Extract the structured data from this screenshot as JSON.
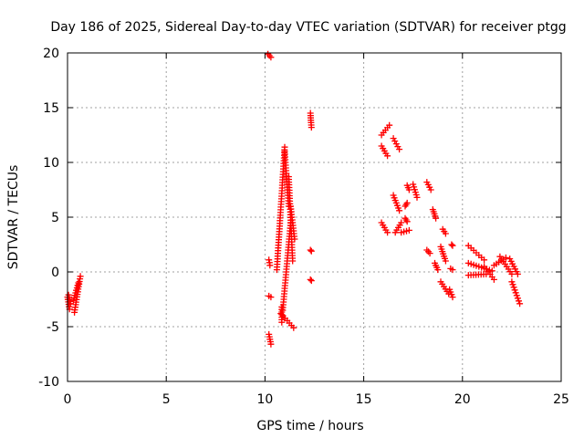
{
  "chart_data": {
    "type": "scatter",
    "title": "Day 186 of 2025, Sidereal Day-to-day VTEC variation (SDTVAR) for receiver ptgg",
    "xlabel": "GPS time / hours",
    "ylabel": "SDTVAR / TECUs",
    "xlim": [
      0,
      25
    ],
    "ylim": [
      -10,
      20
    ],
    "xticks": [
      0,
      5,
      10,
      15,
      20,
      25
    ],
    "yticks": [
      -10,
      -5,
      0,
      5,
      10,
      15,
      20
    ],
    "grid": true,
    "marker": "+",
    "color": "#ff0000",
    "segments": [
      {
        "x0": 0.0,
        "y0": -2.3,
        "x1": 0.1,
        "y1": -3.4
      },
      {
        "x0": 0.05,
        "y0": -2.1,
        "x1": 0.15,
        "y1": -2.9
      },
      {
        "x0": 0.35,
        "y0": -3.7,
        "x1": 0.65,
        "y1": -0.4
      },
      {
        "x0": 0.3,
        "y0": -2.6,
        "x1": 0.55,
        "y1": -1.0
      },
      {
        "x0": 10.15,
        "y0": 19.9,
        "x1": 10.3,
        "y1": 19.6
      },
      {
        "x0": 10.2,
        "y0": -5.7,
        "x1": 10.3,
        "y1": -6.6
      },
      {
        "x0": 10.2,
        "y0": 1.1,
        "x1": 10.25,
        "y1": 0.6
      },
      {
        "x0": 10.2,
        "y0": -2.2,
        "x1": 10.3,
        "y1": -2.3
      },
      {
        "x0": 10.85,
        "y0": -4.6,
        "x1": 10.85,
        "y1": -3.2
      },
      {
        "x0": 10.6,
        "y0": 0.2,
        "x1": 11.0,
        "y1": 11.4
      },
      {
        "x0": 11.0,
        "y0": 11.0,
        "x1": 11.2,
        "y1": 6.0
      },
      {
        "x0": 11.2,
        "y0": 8.7,
        "x1": 11.4,
        "y1": 1.0
      },
      {
        "x0": 11.3,
        "y0": 6.0,
        "x1": 11.5,
        "y1": 3.0
      },
      {
        "x0": 10.9,
        "y0": -3.5,
        "x1": 11.3,
        "y1": 4.5
      },
      {
        "x0": 10.8,
        "y0": -3.8,
        "x1": 11.45,
        "y1": -5.1
      },
      {
        "x0": 12.3,
        "y0": 14.5,
        "x1": 12.35,
        "y1": 13.2
      },
      {
        "x0": 12.3,
        "y0": 2.0,
        "x1": 12.35,
        "y1": 1.9
      },
      {
        "x0": 12.3,
        "y0": -0.7,
        "x1": 12.35,
        "y1": -0.8
      },
      {
        "x0": 15.9,
        "y0": 12.5,
        "x1": 16.3,
        "y1": 13.4
      },
      {
        "x0": 15.9,
        "y0": 11.5,
        "x1": 16.2,
        "y1": 10.6
      },
      {
        "x0": 16.5,
        "y0": 12.2,
        "x1": 16.8,
        "y1": 11.2
      },
      {
        "x0": 15.9,
        "y0": 4.5,
        "x1": 16.2,
        "y1": 3.6
      },
      {
        "x0": 16.6,
        "y0": 3.6,
        "x1": 16.9,
        "y1": 4.5
      },
      {
        "x0": 16.5,
        "y0": 7.0,
        "x1": 16.8,
        "y1": 5.6
      },
      {
        "x0": 17.2,
        "y0": 7.9,
        "x1": 17.3,
        "y1": 7.5
      },
      {
        "x0": 17.1,
        "y0": 6.0,
        "x1": 17.2,
        "y1": 6.3
      },
      {
        "x0": 17.1,
        "y0": 4.9,
        "x1": 17.2,
        "y1": 4.6
      },
      {
        "x0": 16.9,
        "y0": 3.6,
        "x1": 17.3,
        "y1": 3.8
      },
      {
        "x0": 17.5,
        "y0": 8.0,
        "x1": 17.7,
        "y1": 6.8
      },
      {
        "x0": 18.2,
        "y0": 8.2,
        "x1": 18.4,
        "y1": 7.5
      },
      {
        "x0": 18.2,
        "y0": 2.0,
        "x1": 18.35,
        "y1": 1.7
      },
      {
        "x0": 18.5,
        "y0": 5.7,
        "x1": 18.65,
        "y1": 4.9
      },
      {
        "x0": 18.6,
        "y0": 0.8,
        "x1": 18.75,
        "y1": 0.2
      },
      {
        "x0": 19.0,
        "y0": 3.9,
        "x1": 19.15,
        "y1": 3.5
      },
      {
        "x0": 18.9,
        "y0": 2.3,
        "x1": 19.15,
        "y1": 1.0
      },
      {
        "x0": 18.9,
        "y0": -0.9,
        "x1": 19.3,
        "y1": -2.0
      },
      {
        "x0": 19.45,
        "y0": 2.5,
        "x1": 19.5,
        "y1": 2.4
      },
      {
        "x0": 19.4,
        "y0": 0.3,
        "x1": 19.5,
        "y1": 0.2
      },
      {
        "x0": 19.35,
        "y0": -1.6,
        "x1": 19.5,
        "y1": -2.3
      },
      {
        "x0": 20.3,
        "y0": 2.4,
        "x1": 21.1,
        "y1": 1.1
      },
      {
        "x0": 20.3,
        "y0": 0.8,
        "x1": 21.5,
        "y1": 0.1
      },
      {
        "x0": 20.3,
        "y0": -0.3,
        "x1": 21.2,
        "y1": -0.2
      },
      {
        "x0": 21.1,
        "y0": 0.5,
        "x1": 21.6,
        "y1": -0.7
      },
      {
        "x0": 21.6,
        "y0": 0.6,
        "x1": 22.2,
        "y1": 1.3
      },
      {
        "x0": 21.9,
        "y0": 1.4,
        "x1": 22.5,
        "y1": -0.2
      },
      {
        "x0": 22.4,
        "y0": 1.2,
        "x1": 22.8,
        "y1": -0.2
      },
      {
        "x0": 22.5,
        "y0": -0.9,
        "x1": 22.9,
        "y1": -2.9
      }
    ]
  }
}
